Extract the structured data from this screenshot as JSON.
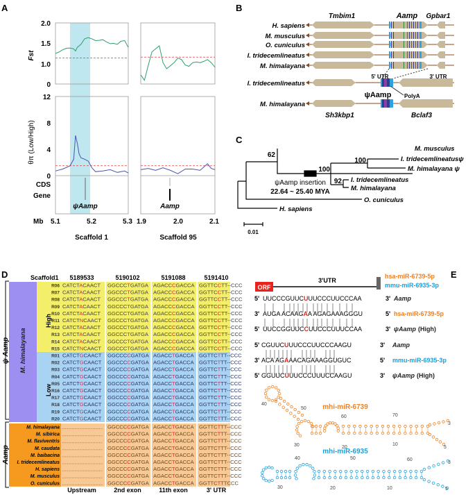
{
  "panels": {
    "a": "A",
    "b": "B",
    "c": "C",
    "d": "D",
    "e": "E"
  },
  "panel_a": {
    "ylabel_top": "Fst",
    "ylabel_bottom": "θπ (Low/High)",
    "top_ticks": [
      "2.0",
      "1.5",
      "1.0",
      "0"
    ],
    "bottom_ticks": [
      "12",
      "8",
      "4",
      "0"
    ],
    "track_labels": [
      "CDS",
      "Gene"
    ],
    "mb_label": "Mb",
    "left_x_ticks": [
      "5.1",
      "5.2",
      "5.3"
    ],
    "right_x_ticks": [
      "1.9",
      "2.0",
      "2.1"
    ],
    "left_gene": "ψAamp",
    "right_gene": "Aamp",
    "left_scaffold": "Scaffold 1",
    "right_scaffold": "Scaffold 95",
    "colors": {
      "fst": "#2e9e6a",
      "pi": "#4a55b0",
      "threshold": "#e03a3a",
      "highlight": "#bfe7ef"
    }
  },
  "chart_data": [
    {
      "type": "line",
      "title": "",
      "xlabel": "Scaffold 1",
      "ylabel": "Fst",
      "xlim": [
        5.1,
        5.3
      ],
      "ylim": [
        0,
        2.0
      ],
      "threshold": 0.85,
      "highlight_range": [
        5.14,
        5.195
      ],
      "x": [
        5.1,
        5.11,
        5.12,
        5.13,
        5.14,
        5.15,
        5.155,
        5.16,
        5.17,
        5.18,
        5.19,
        5.2,
        5.21,
        5.22,
        5.23,
        5.24,
        5.25,
        5.26,
        5.27,
        5.28,
        5.29,
        5.3
      ],
      "y": [
        1.0,
        1.05,
        1.12,
        1.17,
        1.18,
        1.15,
        1.08,
        1.2,
        1.3,
        1.48,
        1.52,
        1.48,
        1.42,
        1.43,
        1.45,
        1.38,
        1.32,
        1.33,
        1.3,
        1.4,
        1.42,
        1.2
      ]
    },
    {
      "type": "line",
      "title": "",
      "xlabel": "Scaffold 95",
      "ylabel": "Fst",
      "xlim": [
        1.9,
        2.1
      ],
      "ylim": [
        0,
        2.0
      ],
      "threshold": 0.88,
      "x": [
        1.9,
        1.91,
        1.92,
        1.93,
        1.94,
        1.95,
        1.96,
        1.97,
        1.98,
        1.99,
        2.0,
        2.01,
        2.02,
        2.03,
        2.04,
        2.05,
        2.06,
        2.07,
        2.08,
        2.09,
        2.1
      ],
      "y": [
        0.3,
        0.12,
        0.6,
        1.05,
        1.15,
        1.25,
        0.7,
        0.5,
        0.6,
        0.7,
        0.85,
        0.8,
        0.62,
        0.58,
        0.7,
        0.72,
        0.7,
        0.74,
        0.8,
        0.7,
        0.55
      ]
    },
    {
      "type": "line",
      "title": "",
      "xlabel": "Scaffold 1",
      "ylabel": "θπ (Low/High)",
      "xlim": [
        5.1,
        5.3
      ],
      "ylim": [
        0,
        12
      ],
      "threshold": 1.5,
      "highlight_range": [
        5.14,
        5.195
      ],
      "x": [
        5.1,
        5.12,
        5.14,
        5.15,
        5.155,
        5.16,
        5.165,
        5.17,
        5.18,
        5.19,
        5.2,
        5.21,
        5.23,
        5.25,
        5.27,
        5.29,
        5.3
      ],
      "y": [
        0.7,
        1.0,
        1.5,
        2.5,
        6.1,
        4.9,
        3.3,
        2.7,
        2.5,
        2.2,
        1.2,
        0.6,
        0.7,
        0.9,
        0.5,
        0.7,
        0.4
      ]
    },
    {
      "type": "line",
      "title": "",
      "xlabel": "Scaffold 95",
      "ylabel": "θπ (Low/High)",
      "xlim": [
        1.9,
        2.1
      ],
      "ylim": [
        0,
        12
      ],
      "threshold": 1.5,
      "x": [
        1.9,
        1.92,
        1.94,
        1.96,
        1.98,
        2.0,
        2.02,
        2.04,
        2.06,
        2.08,
        2.09,
        2.1
      ],
      "y": [
        0.9,
        1.1,
        0.8,
        1.2,
        0.8,
        0.3,
        1.0,
        1.0,
        0.8,
        1.8,
        1.1,
        0.9
      ]
    }
  ],
  "panel_b": {
    "gene_headers": [
      "Tmbim1",
      "Aamp",
      "Gpbar1"
    ],
    "species": [
      "H. sapiens",
      "M. musculus",
      "O. cuniculus",
      "I. tridecemlineatus",
      "M. himalayana"
    ],
    "utr5": "5' UTR",
    "utr3": "3' UTR",
    "insert_species": [
      "I. tridecemlineatus",
      "M. himalayana"
    ],
    "pseudo": "ψAamp",
    "polya": "PolyA",
    "bottom_genes": [
      "Sh3kbp1",
      "Bclaf3"
    ],
    "colors": {
      "gene": "#c8b99a",
      "line": "#8b4a1e",
      "utr": "#2ea3e0",
      "exon": "#3a3a8a",
      "exon2": "#2a8a3a",
      "exon3": "#8a40a8"
    }
  },
  "panel_c": {
    "leaves": [
      "M. musculus",
      "I. tridecemlineatusψ",
      "M. himalayana ψ",
      "I. tridecemlineatus",
      "M. himalayana",
      "O. cuniculus",
      "H. sapiens"
    ],
    "bootstrap": [
      "62",
      "100",
      "100",
      "92"
    ],
    "insertion_label": "ψAamp insertion",
    "insertion_age": "22.64 ~ 25.40 MYA",
    "scale": "0.01"
  },
  "panel_d": {
    "scaffold": "Scaffold1",
    "positions": [
      "5189533",
      "5190102",
      "5191088",
      "5191410"
    ],
    "regions": [
      "Upstream",
      "2nd exon",
      "11th exon",
      "3' UTR"
    ],
    "group_pseudo": "ψ Aamp",
    "group_gene": "Aamp",
    "population": "M. himalayana",
    "high": "High",
    "low": "Low",
    "high_rows": [
      {
        "id": "R06",
        "seqs": [
          "CATCTACAACT",
          "GGCCCTGATGA",
          "AGACCCGACCA",
          "GGTTCCTT--CCC"
        ]
      },
      {
        "id": "R07",
        "seqs": [
          "CATCTACAACT",
          "GGCCCTGATGA",
          "AGACCCGACCA",
          "GGTTCCTT--CCC"
        ]
      },
      {
        "id": "R08",
        "seqs": [
          "CATCTACAACT",
          "GGCCCTGATGA",
          "AGACCCGACCA",
          "GGTTCCTT--CCC"
        ]
      },
      {
        "id": "R09",
        "seqs": [
          "CATCTACAACT",
          "GGCCCTGATGA",
          "AGACCCGACCA",
          "GGTTCCTT--CCC"
        ]
      },
      {
        "id": "R10",
        "seqs": [
          "CATCTACAACT",
          "GGCCCTGATGA",
          "AGACCCGACCA",
          "GGTTCCTT--CCC"
        ]
      },
      {
        "id": "R11",
        "seqs": [
          "CATCTNCAACT",
          "GGCCCTGATGA",
          "AGACCCGACCA",
          "GGTTCCTT--CCC"
        ]
      },
      {
        "id": "R12",
        "seqs": [
          "CATCTACAACT",
          "GGCCCTGATGA",
          "AGACCCGACCA",
          "GGTTCCTT--CCC"
        ]
      },
      {
        "id": "R13",
        "seqs": [
          "CATCTACAACT",
          "GGCCCTGATGA",
          "AGACCCGACCA",
          "GGTTCCTT--CCC"
        ]
      },
      {
        "id": "R14",
        "seqs": [
          "CATCTACAACT",
          "GGCCCTGATGA",
          "AGACCCGACCA",
          "GGTTCCTT--CCC"
        ]
      },
      {
        "id": "R15",
        "seqs": [
          "CATCTNCAACT",
          "GGCCCTGATGA",
          "AGACCCGACCA",
          "GGTTCCTT--CCC"
        ]
      }
    ],
    "low_rows": [
      {
        "id": "R01",
        "seqs": [
          "CATCTGCAACT",
          "GGCCCCGATGA",
          "AGACCTGACCA",
          "GGTTCTTT--CCC"
        ]
      },
      {
        "id": "R02",
        "seqs": [
          "CATCTGCAACT",
          "GGCCCCGATGA",
          "AGACCTGACCA",
          "GGTTCTTT--CCC"
        ]
      },
      {
        "id": "R03",
        "seqs": [
          "CATCTGCAACT",
          "GGCCCCGATGA",
          "AGACCTGACCA",
          "GGTTCTTT--CCC"
        ]
      },
      {
        "id": "R04",
        "seqs": [
          "CATCTGCAACT",
          "GGCCCCGATGA",
          "AGACCTGACCA",
          "GGTTCTTT--CCC"
        ]
      },
      {
        "id": "R05",
        "seqs": [
          "CATCTGCAACT",
          "GGCCCCGATGA",
          "AGACCTGACCA",
          "GGTTCTTT--CCC"
        ]
      },
      {
        "id": "R16",
        "seqs": [
          "CATCTGCAACT",
          "GGCCCCGATGA",
          "AGACCTGACCA",
          "GGTTCTTT--CCC"
        ]
      },
      {
        "id": "R17",
        "seqs": [
          "CATCTGCAACT",
          "GGCCCCGATGA",
          "AGACCTGACCA",
          "GGTTCTTT--CCC"
        ]
      },
      {
        "id": "R18",
        "seqs": [
          "CATCTGCAACT",
          "GGCCCCGATGA",
          "AGACCTGACCA",
          "GGTTCTTT--CCC"
        ]
      },
      {
        "id": "R19",
        "seqs": [
          "CATCTGCAACT",
          "GGCCCCGATGA",
          "AGACCTGACCA",
          "GGTTCTTT--CCC"
        ]
      },
      {
        "id": "R20",
        "seqs": [
          "CATCTGCAACT",
          "GGCCCCGATGA",
          "AGACCTGACCA",
          "GGTTCTTT--CCC"
        ]
      }
    ],
    "species_rows": [
      {
        "id": "M. himalayana",
        "seqs": [
          "",
          "GGCCCCGATGA",
          "AGACCTGACCA",
          "GGTTCTTT--CCC"
        ]
      },
      {
        "id": "M. sibirica",
        "seqs": [
          "",
          "GGCCCCGATGA",
          "AGACCTGACCA",
          "GGTTCTTT--CCC"
        ]
      },
      {
        "id": "M. flaviventris",
        "seqs": [
          "",
          "GGCCCCGATGA",
          "AGACCTGACCA",
          "GGTTCTTT--CCC"
        ]
      },
      {
        "id": "M. caudata",
        "seqs": [
          "",
          "GGCCCCGATGA",
          "AGACCTGACCA",
          "GGTTCTTT--CCC"
        ]
      },
      {
        "id": "M. baibacina",
        "seqs": [
          "",
          "GGCCCCGATGA",
          "AGACCTGACCA",
          "GGTTCTTT--CCC"
        ]
      },
      {
        "id": "I. tridecemlineatus",
        "seqs": [
          "",
          "GGCCCCGATGA",
          "AGACCTGACCA",
          "GGTTCTTT--CCC"
        ]
      },
      {
        "id": "H. sapiens",
        "seqs": [
          "",
          "GGCCCCGATGA",
          "AGACCTGACCA",
          "GGTTCTTT--CCC"
        ]
      },
      {
        "id": "M. musculus",
        "seqs": [
          "",
          "GGCCCCGATGA",
          "AGACCTGACCA",
          "GGTTCTTT--CCC"
        ]
      },
      {
        "id": "O. cuniculus",
        "seqs": [
          "",
          "GGCCCCGATGA",
          "AGACCTGACCA",
          "GGTTCTTTCCC"
        ]
      }
    ],
    "colors": {
      "purple": "#9d8ff2",
      "high": "#f4ef6b",
      "low": "#a9d3f3",
      "orange": "#f59a1e",
      "orange_bg": "#f8c994",
      "var_high": "#e8231e",
      "var_low": "#d0305a",
      "var_gene": "#e8231e"
    }
  },
  "panel_e": {
    "orf": "ORF",
    "utr": "3'UTR",
    "mir1": "hsa-miR-6739-5p",
    "mir2": "mmu-miR-6935-3p",
    "lines": [
      {
        "left": "5'",
        "pre": "UUCCCGUUC",
        "hl": "U",
        "post": "UUCCCUUCCCAA",
        "right": "3'",
        "label": "Aamp",
        "labelExtra": ""
      },
      {
        "left": "3'",
        "pre": "AUGA ACAAG",
        "hl": "A",
        "post": "A AGAGAAAGGGU",
        "right": "5'",
        "label": "hsa-miR-6739-5p",
        "labelExtra": ""
      },
      {
        "left": "5'",
        "pre": "UUCCGGUUC",
        "hl": "C",
        "post": "UUCCCUUUCCAA",
        "right": "3'",
        "label": "ψAamp",
        "labelExtra": "(High)"
      },
      {
        "left": "5'",
        "pre": "CGUUC",
        "hl": "U",
        "post": "UUCCCUUCCCAAGU",
        "right": "3'",
        "label": "Aamp",
        "labelExtra": ""
      },
      {
        "left": "3'",
        "pre": "ACA AG",
        "hl": "A",
        "post": "AACAGAAAGGUGUC",
        "right": "5'",
        "label": "mmu-miR-6935-3p",
        "labelExtra": ""
      },
      {
        "left": "5'",
        "pre": "GGUUC",
        "hl": "U",
        "post": "UUCCCUUUCCAAGU",
        "right": "3'",
        "label": "ψAamp",
        "labelExtra": "(High)"
      }
    ],
    "hairpin1": "mhi-miR-6739",
    "hairpin2": "mhi-miR-6935",
    "hairpin1_numbers": [
      "40",
      "50",
      "60",
      "70",
      "30",
      "20",
      "10",
      "3",
      "5"
    ],
    "hairpin2_numbers": [
      "40",
      "50",
      "60",
      "30",
      "20",
      "10",
      "3",
      "5"
    ],
    "colors": {
      "orf": "#e8231e",
      "orange": "#f07f1e",
      "blue": "#1aa0dc",
      "hl": "#e8231e"
    }
  }
}
